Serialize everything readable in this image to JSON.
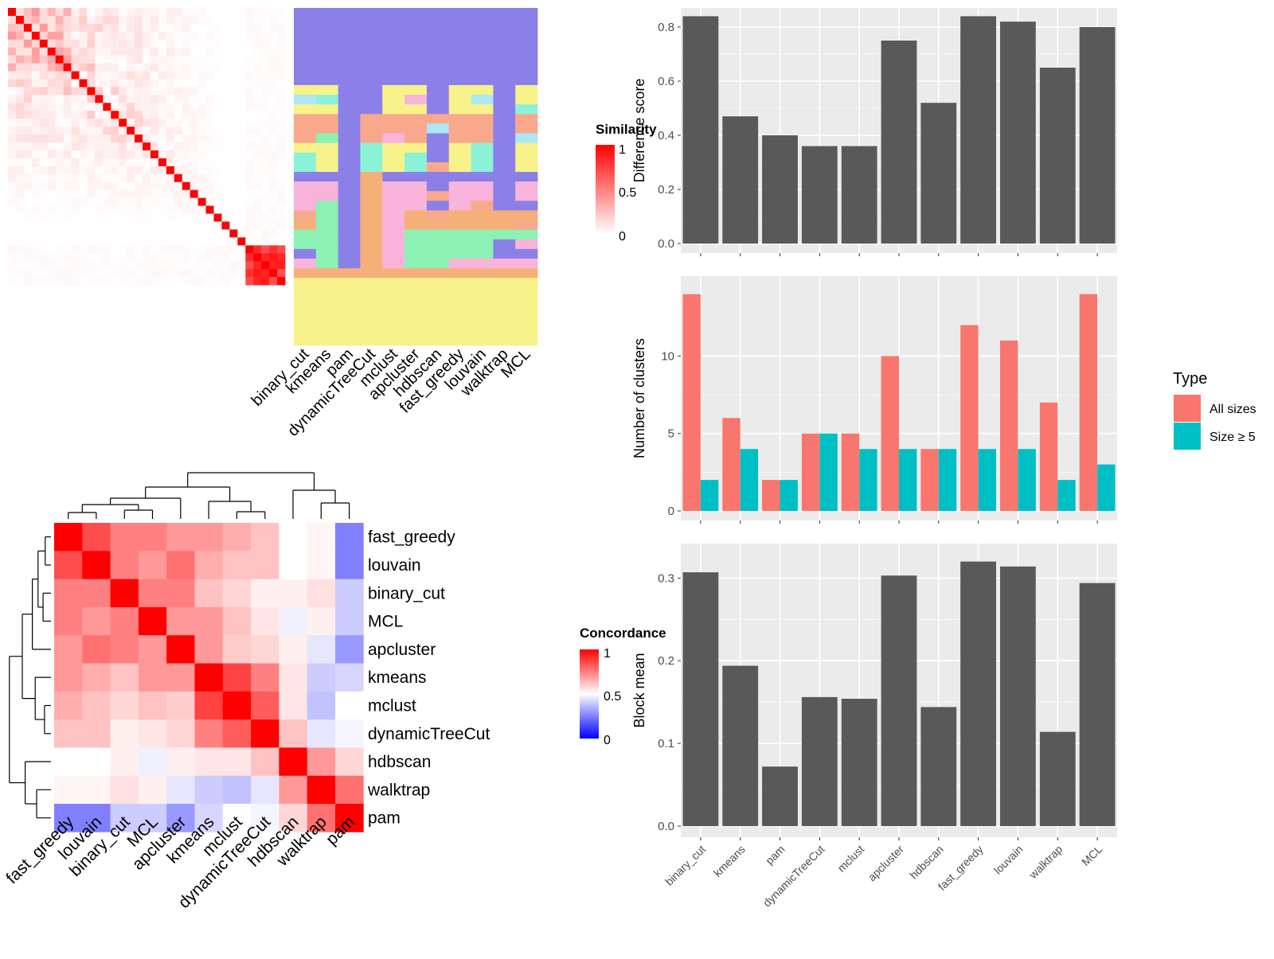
{
  "methods": [
    "binary_cut",
    "kmeans",
    "pam",
    "dynamicTreeCut",
    "mclust",
    "apcluster",
    "hdbscan",
    "fast_greedy",
    "louvain",
    "walktrap",
    "MCL"
  ],
  "heatmap_order": [
    "fast_greedy",
    "louvain",
    "binary_cut",
    "MCL",
    "apcluster",
    "kmeans",
    "mclust",
    "dynamicTreeCut",
    "hdbscan",
    "walktrap",
    "pam"
  ],
  "similarity_legend": {
    "title": "Similarity",
    "ticks": [
      "1",
      "0.5",
      "0"
    ]
  },
  "concordance_legend": {
    "title": "Concordance",
    "ticks": [
      "1",
      "0.5",
      "0"
    ]
  },
  "type_legend": {
    "title": "Type",
    "items": [
      "All sizes",
      "Size ≥ 5"
    ]
  },
  "colors": {
    "bar": "#595959",
    "all_sizes": "#F8766D",
    "size_ge5": "#00BFC4",
    "panel_bg": "#EBEBEB",
    "high": "#FF0000",
    "low": "#0000FF",
    "class_palette": [
      "#8B80E8",
      "#F8F28A",
      "#F9A98B",
      "#8BF2D8",
      "#F9B4DC",
      "#8BF2B4",
      "#F5B07A",
      "#AEE7F5"
    ]
  },
  "chart_data": [
    {
      "type": "bar",
      "categories": [
        "binary_cut",
        "kmeans",
        "pam",
        "dynamicTreeCut",
        "mclust",
        "apcluster",
        "hdbscan",
        "fast_greedy",
        "louvain",
        "walktrap",
        "MCL"
      ],
      "values": [
        0.84,
        0.47,
        0.4,
        0.36,
        0.36,
        0.75,
        0.52,
        0.84,
        0.82,
        0.65,
        0.8
      ],
      "ylabel": "Difference score",
      "ylim": [
        0,
        0.85
      ],
      "yticks": [
        "0.0",
        "0.2",
        "0.4",
        "0.6",
        "0.8"
      ],
      "grid": true
    },
    {
      "type": "bar",
      "categories": [
        "binary_cut",
        "kmeans",
        "pam",
        "dynamicTreeCut",
        "mclust",
        "apcluster",
        "hdbscan",
        "fast_greedy",
        "louvain",
        "walktrap",
        "MCL"
      ],
      "series": [
        {
          "name": "All sizes",
          "values": [
            14,
            6,
            2,
            5,
            5,
            10,
            4,
            12,
            11,
            7,
            14
          ]
        },
        {
          "name": "Size ≥ 5",
          "values": [
            2,
            4,
            2,
            5,
            4,
            4,
            4,
            4,
            4,
            2,
            3
          ]
        }
      ],
      "ylabel": "Number of clusters",
      "ylim": [
        0,
        14.8
      ],
      "yticks": [
        "0",
        "5",
        "10"
      ],
      "legend": "right",
      "grid": true
    },
    {
      "type": "bar",
      "categories": [
        "binary_cut",
        "kmeans",
        "pam",
        "dynamicTreeCut",
        "mclust",
        "apcluster",
        "hdbscan",
        "fast_greedy",
        "louvain",
        "walktrap",
        "MCL"
      ],
      "values": [
        0.307,
        0.194,
        0.072,
        0.156,
        0.154,
        0.303,
        0.144,
        0.32,
        0.314,
        0.114,
        0.294
      ],
      "ylabel": "Block mean",
      "ylim": [
        0,
        0.335
      ],
      "yticks": [
        "0.0",
        "0.1",
        "0.2",
        "0.3"
      ],
      "grid": true
    },
    {
      "type": "heatmap",
      "rows": [
        "fast_greedy",
        "louvain",
        "binary_cut",
        "MCL",
        "apcluster",
        "kmeans",
        "mclust",
        "dynamicTreeCut",
        "hdbscan",
        "walktrap",
        "pam"
      ],
      "columns": [
        "fast_greedy",
        "louvain",
        "binary_cut",
        "MCL",
        "apcluster",
        "kmeans",
        "mclust",
        "dynamicTreeCut",
        "hdbscan",
        "walktrap",
        "pam"
      ],
      "values": [
        [
          1.0,
          0.85,
          0.75,
          0.75,
          0.7,
          0.7,
          0.66,
          0.62,
          0.5,
          0.52,
          0.25
        ],
        [
          0.85,
          1.0,
          0.75,
          0.7,
          0.78,
          0.66,
          0.62,
          0.62,
          0.5,
          0.52,
          0.25
        ],
        [
          0.75,
          0.75,
          1.0,
          0.75,
          0.75,
          0.62,
          0.58,
          0.53,
          0.53,
          0.56,
          0.4
        ],
        [
          0.75,
          0.7,
          0.75,
          1.0,
          0.7,
          0.7,
          0.62,
          0.55,
          0.47,
          0.53,
          0.4
        ],
        [
          0.7,
          0.78,
          0.75,
          0.7,
          1.0,
          0.7,
          0.6,
          0.58,
          0.53,
          0.45,
          0.3
        ],
        [
          0.7,
          0.66,
          0.62,
          0.7,
          0.7,
          1.0,
          0.87,
          0.75,
          0.55,
          0.4,
          0.42
        ],
        [
          0.66,
          0.62,
          0.58,
          0.62,
          0.6,
          0.87,
          1.0,
          0.82,
          0.55,
          0.38,
          0.5
        ],
        [
          0.62,
          0.62,
          0.53,
          0.55,
          0.58,
          0.75,
          0.82,
          1.0,
          0.62,
          0.45,
          0.48
        ],
        [
          0.5,
          0.5,
          0.53,
          0.47,
          0.53,
          0.55,
          0.55,
          0.62,
          1.0,
          0.7,
          0.58
        ],
        [
          0.52,
          0.52,
          0.56,
          0.53,
          0.45,
          0.4,
          0.38,
          0.45,
          0.7,
          1.0,
          0.78
        ],
        [
          0.25,
          0.25,
          0.4,
          0.4,
          0.3,
          0.42,
          0.5,
          0.48,
          0.58,
          0.78,
          1.0
        ]
      ],
      "color_range": [
        0,
        1
      ],
      "dendrogram": "rows and columns"
    },
    {
      "type": "heatmap",
      "columns": [
        "binary_cut",
        "kmeans",
        "pam",
        "dynamicTreeCut",
        "mclust",
        "apcluster",
        "hdbscan",
        "fast_greedy",
        "louvain",
        "walktrap",
        "MCL"
      ],
      "classes": [
        [
          0,
          0,
          0,
          0,
          0,
          0,
          0,
          0,
          0,
          0,
          0
        ],
        [
          0,
          0,
          0,
          0,
          0,
          0,
          0,
          0,
          0,
          0,
          0
        ],
        [
          0,
          0,
          0,
          0,
          0,
          0,
          0,
          0,
          0,
          0,
          0
        ],
        [
          0,
          0,
          0,
          0,
          0,
          0,
          0,
          0,
          0,
          0,
          0
        ],
        [
          0,
          0,
          0,
          0,
          0,
          0,
          0,
          0,
          0,
          0,
          0
        ],
        [
          0,
          0,
          0,
          0,
          0,
          0,
          0,
          0,
          0,
          0,
          0
        ],
        [
          0,
          0,
          0,
          0,
          0,
          0,
          0,
          0,
          0,
          0,
          0
        ],
        [
          0,
          0,
          0,
          0,
          0,
          0,
          0,
          0,
          0,
          0,
          0
        ],
        [
          1,
          1,
          0,
          0,
          1,
          1,
          0,
          1,
          1,
          0,
          1
        ],
        [
          7,
          3,
          0,
          0,
          1,
          4,
          0,
          1,
          7,
          0,
          1
        ],
        [
          1,
          1,
          0,
          0,
          1,
          1,
          0,
          1,
          1,
          0,
          3
        ],
        [
          2,
          2,
          0,
          2,
          2,
          2,
          2,
          2,
          2,
          0,
          2
        ],
        [
          2,
          2,
          0,
          2,
          2,
          2,
          7,
          2,
          2,
          0,
          2
        ],
        [
          2,
          5,
          0,
          2,
          4,
          2,
          0,
          2,
          2,
          0,
          7
        ],
        [
          1,
          1,
          0,
          3,
          1,
          1,
          0,
          1,
          3,
          0,
          1
        ],
        [
          3,
          1,
          0,
          3,
          1,
          3,
          0,
          1,
          3,
          0,
          1
        ],
        [
          3,
          1,
          0,
          3,
          1,
          3,
          2,
          1,
          3,
          0,
          1
        ],
        [
          0,
          0,
          0,
          6,
          0,
          0,
          0,
          0,
          0,
          0,
          0
        ],
        [
          4,
          4,
          0,
          6,
          4,
          4,
          0,
          4,
          4,
          0,
          4
        ],
        [
          4,
          4,
          0,
          6,
          4,
          4,
          2,
          4,
          4,
          0,
          4
        ],
        [
          4,
          5,
          0,
          6,
          4,
          4,
          0,
          4,
          2,
          0,
          0
        ],
        [
          2,
          5,
          0,
          6,
          4,
          6,
          2,
          6,
          6,
          6,
          6
        ],
        [
          6,
          5,
          0,
          6,
          4,
          6,
          6,
          6,
          6,
          6,
          2
        ],
        [
          5,
          5,
          0,
          6,
          4,
          5,
          5,
          5,
          5,
          5,
          5
        ],
        [
          5,
          5,
          0,
          6,
          4,
          5,
          5,
          5,
          5,
          0,
          4
        ],
        [
          0,
          5,
          0,
          6,
          4,
          5,
          5,
          5,
          5,
          0,
          0
        ],
        [
          4,
          5,
          0,
          6,
          4,
          5,
          5,
          4,
          4,
          4,
          4
        ],
        [
          6,
          6,
          6,
          6,
          6,
          6,
          6,
          6,
          6,
          6,
          6
        ],
        [
          1,
          1,
          1,
          1,
          1,
          1,
          1,
          1,
          1,
          1,
          1
        ],
        [
          1,
          1,
          1,
          1,
          1,
          1,
          1,
          1,
          1,
          1,
          1
        ],
        [
          1,
          1,
          1,
          1,
          1,
          1,
          1,
          1,
          1,
          1,
          1
        ],
        [
          1,
          1,
          1,
          1,
          1,
          1,
          1,
          1,
          1,
          1,
          1
        ],
        [
          1,
          1,
          1,
          1,
          1,
          1,
          1,
          1,
          1,
          1,
          1
        ],
        [
          1,
          1,
          1,
          1,
          1,
          1,
          1,
          1,
          1,
          1,
          1
        ],
        [
          1,
          1,
          1,
          1,
          1,
          1,
          1,
          1,
          1,
          1,
          1
        ]
      ]
    }
  ]
}
